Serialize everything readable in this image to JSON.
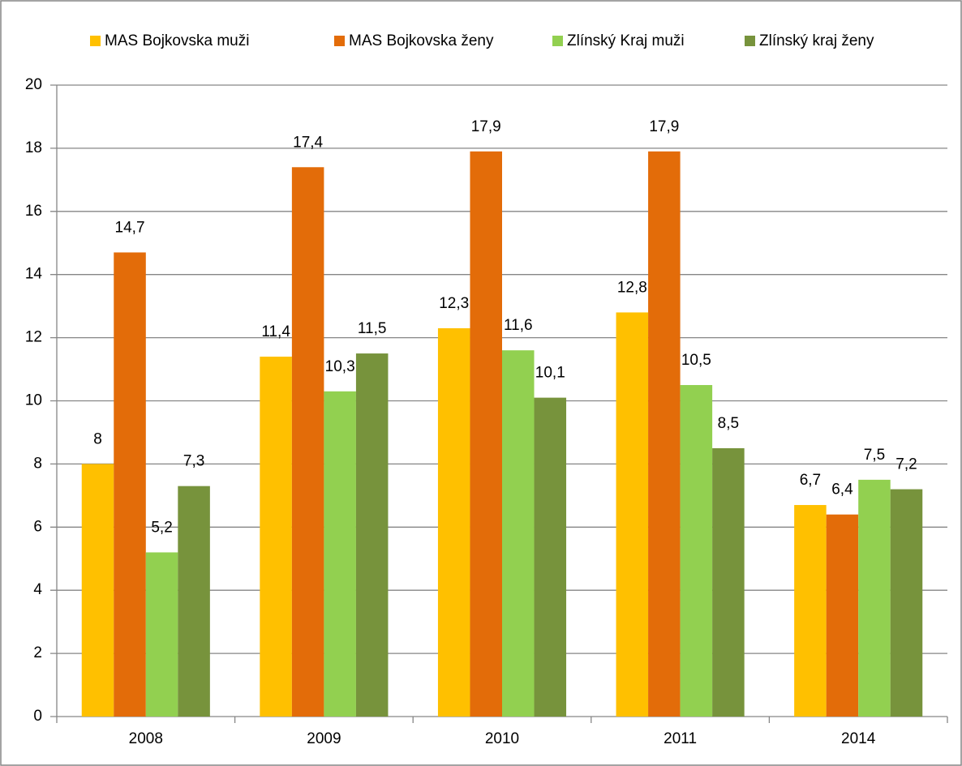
{
  "chart_data": {
    "type": "bar",
    "categories": [
      "2008",
      "2009",
      "2010",
      "2011",
      "2014"
    ],
    "series": [
      {
        "name": "MAS Bojkovska muži",
        "color": "#ffc000",
        "values": [
          8,
          11.4,
          12.3,
          12.8,
          6.7
        ],
        "value_labels": [
          "8",
          "11,4",
          "12,3",
          "12,8",
          "6,7"
        ]
      },
      {
        "name": "MAS Bojkovska ženy",
        "color": "#e36c09",
        "values": [
          14.7,
          17.4,
          17.9,
          17.9,
          6.4
        ],
        "value_labels": [
          "14,7",
          "17,4",
          "17,9",
          "17,9",
          "6,4"
        ]
      },
      {
        "name": "Zlínský Kraj muži",
        "color": "#92d050",
        "values": [
          5.2,
          10.3,
          11.6,
          10.5,
          7.5
        ],
        "value_labels": [
          "5,2",
          "10,3",
          "11,6",
          "10,5",
          "7,5"
        ]
      },
      {
        "name": "Zlínský kraj ženy",
        "color": "#77933c",
        "values": [
          7.3,
          11.5,
          10.1,
          8.5,
          7.2
        ],
        "value_labels": [
          "7,3",
          "11,5",
          "10,1",
          "8,5",
          "7,2"
        ]
      }
    ],
    "ylim": [
      0,
      20
    ],
    "yticks": [
      0,
      2,
      4,
      6,
      8,
      10,
      12,
      14,
      16,
      18,
      20
    ],
    "grid": true,
    "legend": "top"
  }
}
